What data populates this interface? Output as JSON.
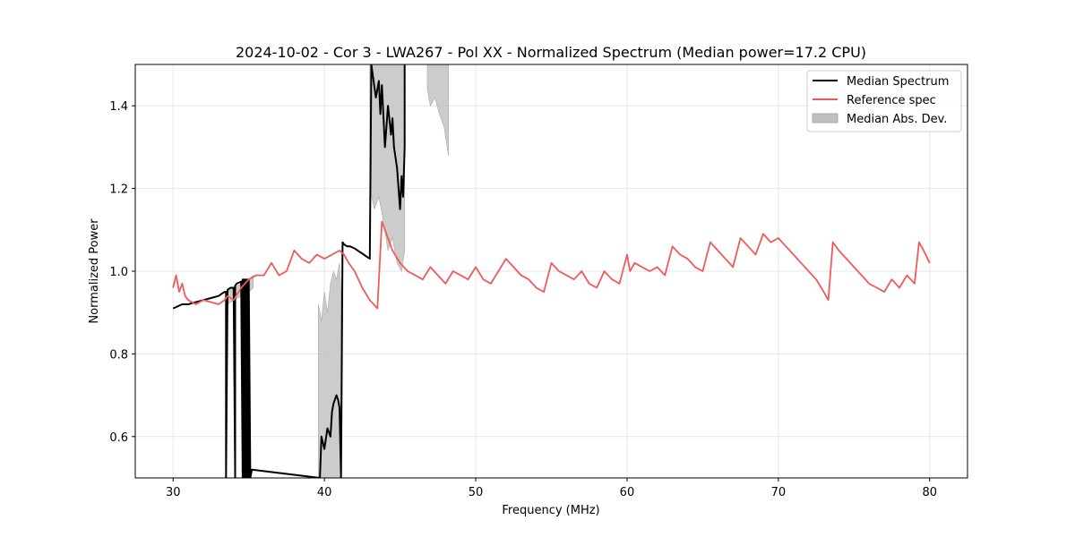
{
  "chart_data": {
    "type": "line",
    "title": "2024-10-02 - Cor 3 - LWA267 - Pol XX - Normalized Spectrum (Median power=17.2 CPU)",
    "xlabel": "Frequency (MHz)",
    "ylabel": "Normalized Power",
    "xlim": [
      27.5,
      82.5
    ],
    "ylim": [
      0.5,
      1.5
    ],
    "xticks": [
      30,
      40,
      50,
      60,
      70,
      80
    ],
    "yticks": [
      0.6,
      0.8,
      1.0,
      1.2,
      1.4
    ],
    "grid": true,
    "legend_position": "top-right",
    "colors": {
      "median": "#000000",
      "reference": "#f05a5a",
      "mad": "#bfbfbf"
    },
    "series": [
      {
        "name": "Median Spectrum",
        "x": [
          30,
          30.3,
          30.6,
          31,
          31.5,
          32,
          32.5,
          33,
          33.4,
          33.5,
          33.5,
          33.6,
          33.8,
          34.0,
          34.1,
          34.1,
          34.2,
          34.5,
          34.6,
          34.6,
          34.7,
          34.7,
          34.8,
          34.8,
          34.9,
          34.9,
          35.0,
          35.0,
          35.1,
          35.2,
          39.7,
          39.8,
          40.0,
          40.2,
          40.4,
          40.5,
          40.6,
          40.8,
          40.9,
          41.0,
          41.1,
          41.2,
          41.3,
          41.5,
          41.7,
          42.0,
          42.2,
          42.4,
          42.6,
          42.8,
          43.0,
          43.1,
          43.1,
          43.4,
          43.6,
          43.7,
          43.8,
          44.0,
          44.2,
          44.4,
          44.5,
          44.6,
          44.8,
          45.0,
          45.1,
          45.2,
          45.3,
          45.3
        ],
        "y": [
          0.91,
          0.915,
          0.92,
          0.92,
          0.925,
          0.93,
          0.935,
          0.94,
          0.95,
          0.95,
          0.5,
          0.955,
          0.96,
          0.96,
          0.5,
          0.965,
          0.97,
          0.975,
          0.5,
          0.98,
          0.5,
          0.98,
          0.5,
          0.98,
          0.5,
          0.98,
          0.5,
          0.98,
          0.5,
          0.52,
          0.5,
          0.6,
          0.57,
          0.62,
          0.6,
          0.66,
          0.68,
          0.7,
          0.69,
          0.67,
          0.5,
          1.07,
          1.065,
          1.06,
          1.06,
          1.055,
          1.05,
          1.045,
          1.04,
          1.035,
          1.03,
          1.5,
          1.5,
          1.42,
          1.46,
          1.38,
          1.45,
          1.3,
          1.4,
          1.33,
          1.37,
          1.3,
          1.25,
          1.15,
          1.23,
          1.18,
          1.3,
          1.5
        ]
      },
      {
        "name": "Reference spec",
        "x": [
          30,
          30.2,
          30.4,
          30.6,
          30.8,
          31,
          31.5,
          32,
          32.5,
          33,
          33.4,
          33.6,
          34,
          34.5,
          35,
          35.5,
          36,
          36.5,
          37,
          37.5,
          38,
          38.5,
          39,
          39.5,
          40,
          40.5,
          41,
          41.3,
          41.6,
          42,
          42.5,
          43,
          43.5,
          43.8,
          44,
          44.5,
          45,
          45.5,
          46,
          46.5,
          47,
          47.5,
          48,
          48.5,
          49,
          49.5,
          50,
          50.5,
          51,
          51.5,
          52,
          52.5,
          53,
          53.5,
          54,
          54.5,
          55,
          55.5,
          56,
          56.5,
          57,
          57.5,
          58,
          58.5,
          59,
          59.5,
          60,
          60.2,
          60.5,
          61,
          61.5,
          62,
          62.5,
          63,
          63.5,
          64,
          64.5,
          65,
          65.5,
          66,
          66.5,
          67,
          67.5,
          68,
          68.5,
          69,
          69.5,
          70,
          70.5,
          71,
          71.5,
          72,
          72.5,
          73,
          73.3,
          73.6,
          74,
          74.5,
          75,
          75.5,
          76,
          76.5,
          77,
          77.5,
          78,
          78.5,
          79,
          79.3,
          79.6,
          80
        ],
        "y": [
          0.96,
          0.99,
          0.95,
          0.97,
          0.94,
          0.93,
          0.92,
          0.93,
          0.925,
          0.92,
          0.93,
          0.94,
          0.93,
          0.96,
          0.98,
          0.99,
          0.99,
          1.02,
          0.99,
          1.0,
          1.05,
          1.03,
          1.02,
          1.04,
          1.03,
          1.04,
          1.05,
          1.04,
          1.02,
          1.0,
          0.96,
          0.93,
          0.91,
          1.12,
          1.1,
          1.05,
          1.02,
          1.0,
          0.99,
          0.98,
          1.01,
          0.99,
          0.97,
          1.0,
          0.99,
          0.98,
          1.01,
          0.98,
          0.97,
          1.0,
          1.03,
          1.01,
          0.99,
          0.98,
          0.96,
          0.95,
          1.02,
          1.0,
          0.99,
          0.98,
          1.0,
          0.97,
          0.96,
          1.0,
          0.98,
          0.97,
          1.04,
          1.0,
          1.02,
          1.01,
          1.0,
          1.01,
          0.99,
          1.06,
          1.04,
          1.03,
          1.01,
          1.0,
          1.07,
          1.05,
          1.03,
          1.01,
          1.08,
          1.06,
          1.04,
          1.09,
          1.07,
          1.08,
          1.06,
          1.04,
          1.02,
          1.0,
          0.98,
          0.95,
          0.93,
          1.07,
          1.05,
          1.03,
          1.01,
          0.99,
          0.97,
          0.96,
          0.95,
          0.98,
          0.96,
          0.99,
          0.97,
          1.07,
          1.05,
          1.02
        ]
      }
    ],
    "bands": [
      {
        "name": "Median Abs. Dev.",
        "x": [
          33.6,
          34,
          34.5,
          35,
          35.3
        ],
        "lower": [
          0.92,
          0.93,
          0.94,
          0.95,
          0.96
        ],
        "upper": [
          0.95,
          0.96,
          0.97,
          0.98,
          0.99
        ]
      },
      {
        "name": "Median Abs. Dev.",
        "x": [
          39.6,
          39.8,
          40.0,
          40.2,
          40.4,
          40.6,
          40.8,
          41.0,
          41.1
        ],
        "lower": [
          0.5,
          0.5,
          0.5,
          0.5,
          0.5,
          0.5,
          0.5,
          0.5,
          0.5
        ],
        "upper": [
          0.92,
          0.88,
          0.95,
          0.9,
          0.97,
          1.0,
          0.98,
          1.02,
          0.95
        ]
      },
      {
        "name": "Median Abs. Dev.",
        "x": [
          43.0,
          43.3,
          43.6,
          43.9,
          44.2,
          44.5,
          44.8,
          45.1,
          45.3
        ],
        "lower": [
          1.2,
          1.15,
          1.18,
          1.12,
          1.05,
          1.08,
          1.02,
          1.0,
          1.05
        ],
        "upper": [
          1.5,
          1.5,
          1.5,
          1.5,
          1.5,
          1.5,
          1.5,
          1.5,
          1.5
        ]
      },
      {
        "name": "Median Abs. Dev.",
        "x": [
          46.8,
          47.0,
          47.3,
          47.6,
          47.9,
          48.2
        ],
        "lower": [
          1.44,
          1.4,
          1.42,
          1.38,
          1.35,
          1.28
        ],
        "upper": [
          1.5,
          1.5,
          1.5,
          1.5,
          1.5,
          1.5
        ]
      }
    ],
    "legend": [
      "Median Spectrum",
      "Reference spec",
      "Median Abs. Dev."
    ]
  }
}
